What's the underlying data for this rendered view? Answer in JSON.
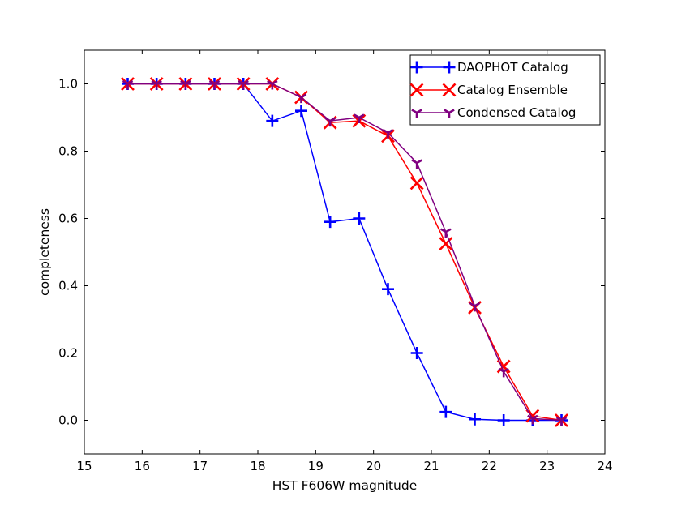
{
  "chart_data": {
    "type": "line",
    "title": "",
    "xlabel": "HST F606W magnitude",
    "ylabel": "completeness",
    "xlim": [
      15,
      24
    ],
    "ylim": [
      -0.1,
      1.1
    ],
    "xticks": [
      15,
      16,
      17,
      18,
      19,
      20,
      21,
      22,
      23,
      24
    ],
    "yticks": [
      0.0,
      0.2,
      0.4,
      0.6,
      0.8,
      1.0
    ],
    "xtick_labels": [
      "15",
      "16",
      "17",
      "18",
      "19",
      "20",
      "21",
      "22",
      "23",
      "24"
    ],
    "ytick_labels": [
      "0.0",
      "0.2",
      "0.4",
      "0.6",
      "0.8",
      "1.0"
    ],
    "grid": false,
    "legend_position": "top-right",
    "x": [
      15.75,
      16.25,
      16.75,
      17.25,
      17.75,
      18.25,
      18.75,
      19.25,
      19.75,
      20.25,
      20.75,
      21.25,
      21.75,
      22.25,
      22.75,
      23.25
    ],
    "series": [
      {
        "name": "DAOPHOT Catalog",
        "color": "#0000ff",
        "marker": "plus",
        "values": [
          1.0,
          1.0,
          1.0,
          1.0,
          1.0,
          0.89,
          0.92,
          0.59,
          0.6,
          0.39,
          0.2,
          0.025,
          0.003,
          0.0,
          0.0,
          0.0
        ]
      },
      {
        "name": "Catalog Ensemble",
        "color": "#ff0000",
        "marker": "x",
        "values": [
          1.0,
          1.0,
          1.0,
          1.0,
          1.0,
          1.0,
          0.96,
          0.885,
          0.89,
          0.845,
          0.705,
          0.525,
          0.335,
          0.16,
          0.013,
          0.0
        ]
      },
      {
        "name": "Condensed Catalog",
        "color": "#800080",
        "marker": "tri_down",
        "values": [
          1.0,
          1.0,
          1.0,
          1.0,
          1.0,
          1.0,
          0.96,
          0.89,
          0.9,
          0.855,
          0.765,
          0.56,
          0.34,
          0.145,
          0.005,
          0.0
        ]
      }
    ]
  }
}
